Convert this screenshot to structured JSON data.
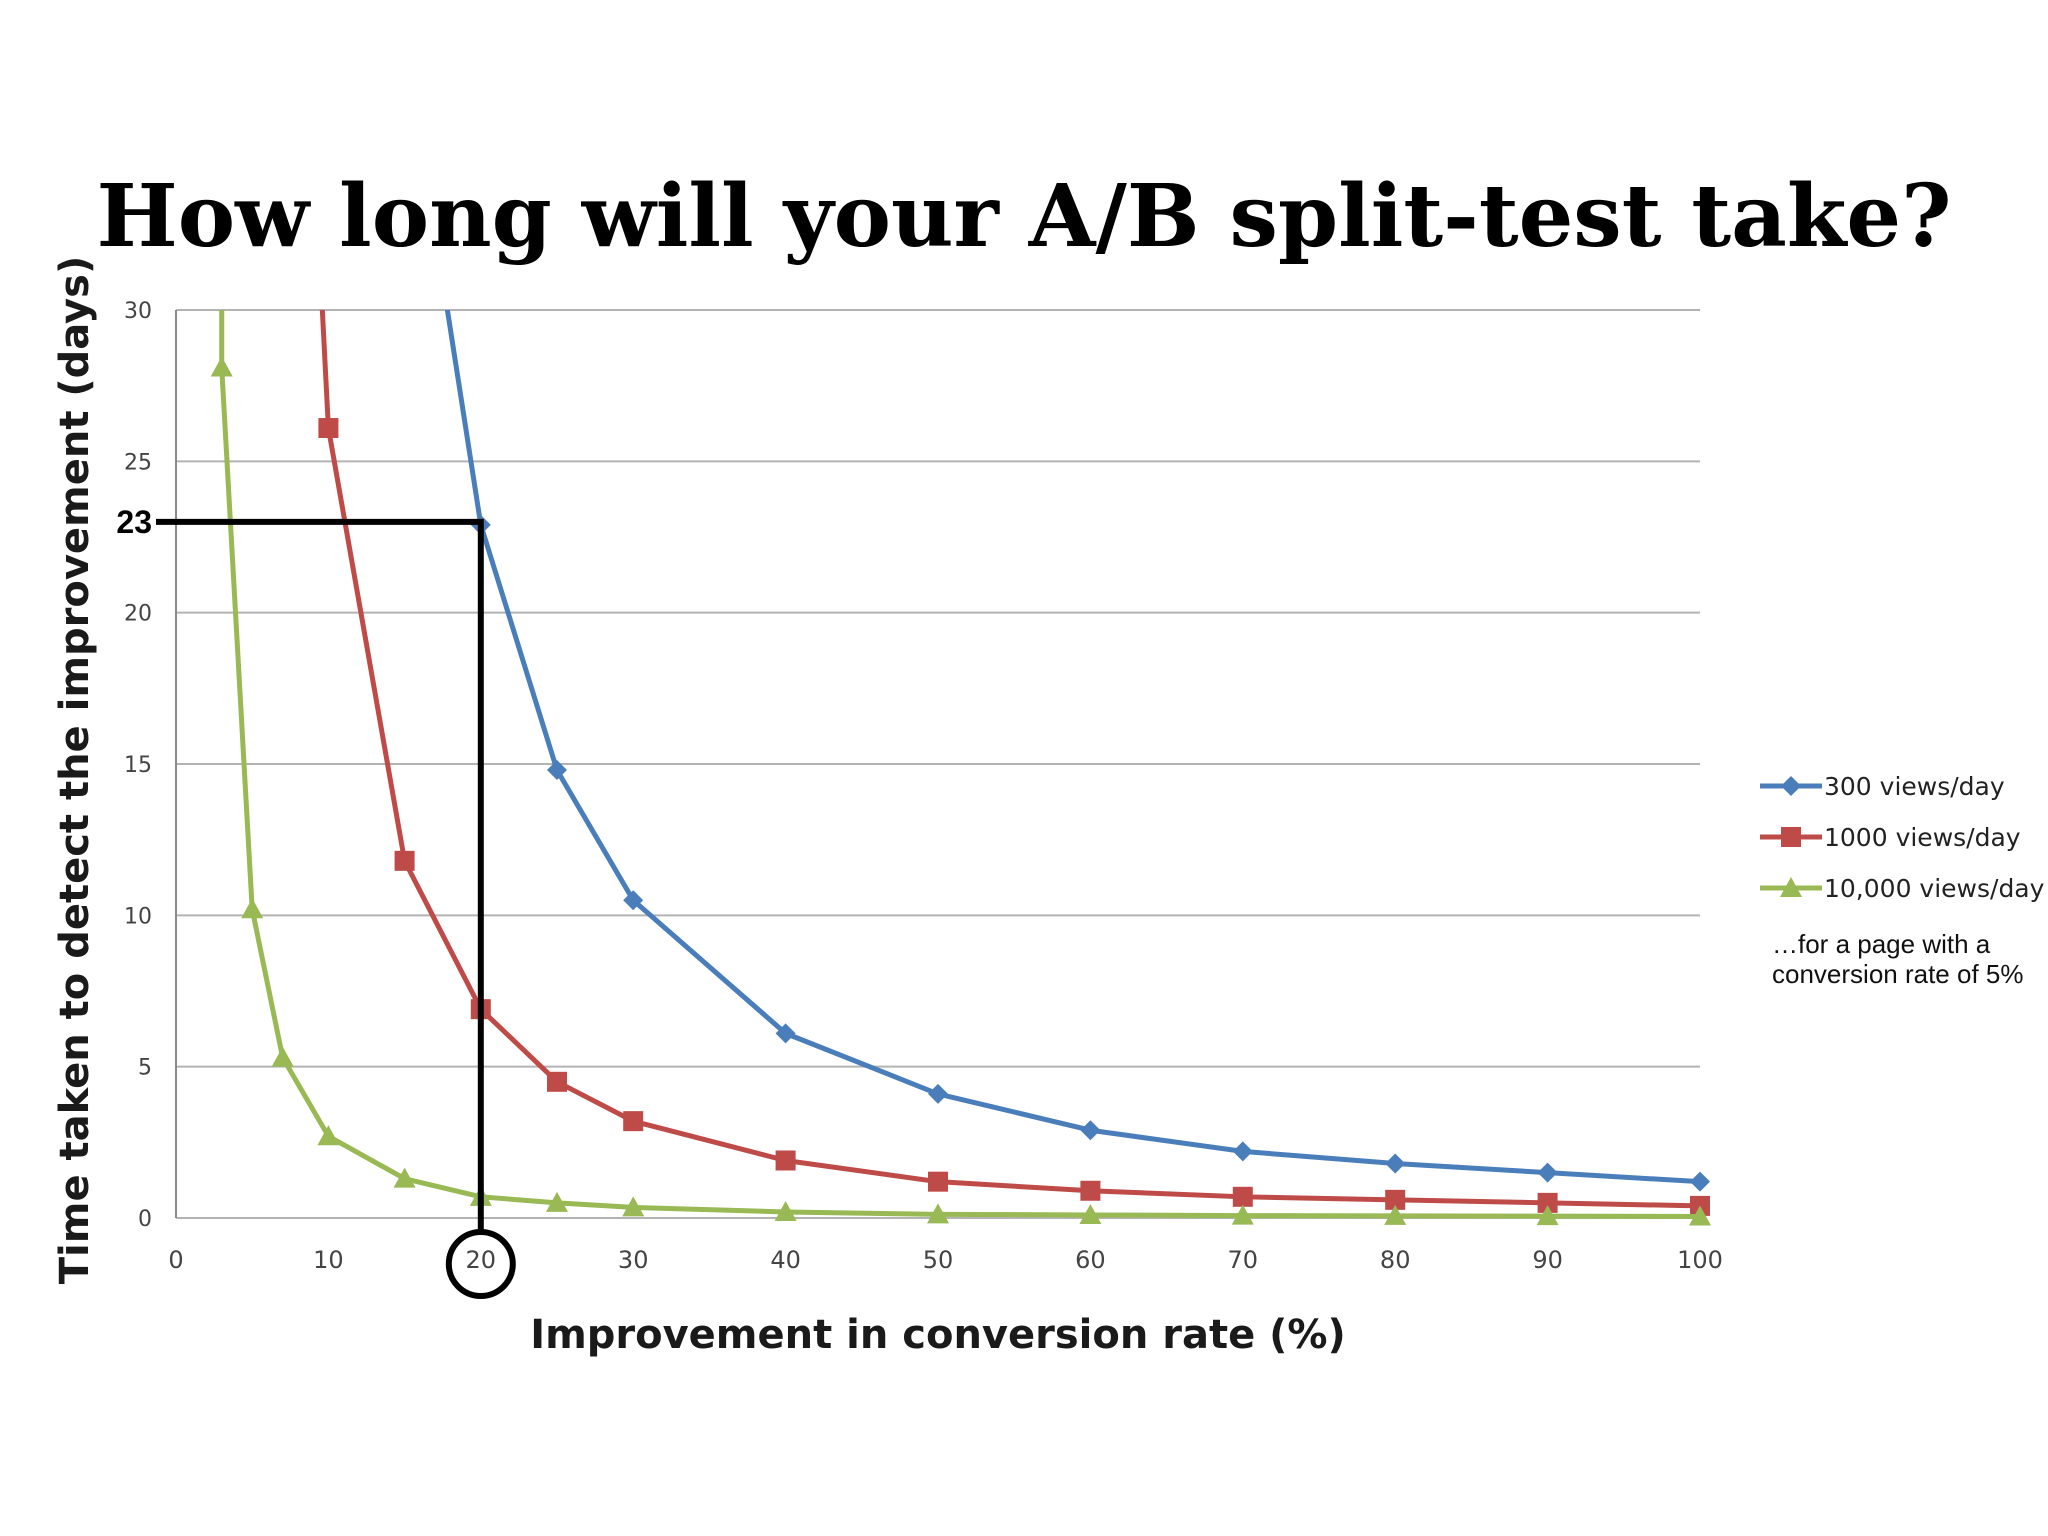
{
  "chart_data": {
    "type": "line",
    "title": "How long will your A/B split-test take?",
    "xlabel": "Improvement in conversion rate (%)",
    "ylabel": "Time taken to detect the improvement (days)",
    "xlim": [
      0,
      100
    ],
    "ylim": [
      0,
      30
    ],
    "x_ticks": [
      0,
      10,
      20,
      30,
      40,
      50,
      60,
      70,
      80,
      90,
      100
    ],
    "y_ticks": [
      0,
      5,
      10,
      15,
      20,
      25,
      30
    ],
    "grid": "horizontal",
    "legend_position": "right",
    "series": [
      {
        "name": "300 views/day",
        "color": "#4a7ebb",
        "marker": "diamond",
        "points": [
          [
            17.5,
            31
          ],
          [
            20,
            22.9
          ],
          [
            25,
            14.8
          ],
          [
            30,
            10.5
          ],
          [
            40,
            6.1
          ],
          [
            50,
            4.1
          ],
          [
            60,
            2.9
          ],
          [
            70,
            2.2
          ],
          [
            80,
            1.8
          ],
          [
            90,
            1.5
          ],
          [
            100,
            1.2
          ]
        ]
      },
      {
        "name": "1000 views/day",
        "color": "#be4b48",
        "marker": "square",
        "points": [
          [
            9.5,
            31
          ],
          [
            10,
            26.1
          ],
          [
            15,
            11.8
          ],
          [
            20,
            6.9
          ],
          [
            25,
            4.5
          ],
          [
            30,
            3.2
          ],
          [
            40,
            1.9
          ],
          [
            50,
            1.2
          ],
          [
            60,
            0.9
          ],
          [
            70,
            0.7
          ],
          [
            80,
            0.6
          ],
          [
            90,
            0.5
          ],
          [
            100,
            0.4
          ]
        ]
      },
      {
        "name": "10,000 views/day",
        "color": "#98b954",
        "marker": "triangle",
        "points": [
          [
            3,
            31
          ],
          [
            3,
            28.1
          ],
          [
            5,
            10.2
          ],
          [
            7,
            5.3
          ],
          [
            10,
            2.7
          ],
          [
            15,
            1.3
          ],
          [
            20,
            0.7
          ],
          [
            25,
            0.5
          ],
          [
            30,
            0.35
          ],
          [
            40,
            0.2
          ],
          [
            50,
            0.12
          ],
          [
            60,
            0.1
          ],
          [
            70,
            0.08
          ],
          [
            80,
            0.07
          ],
          [
            90,
            0.06
          ],
          [
            100,
            0.05
          ]
        ]
      }
    ],
    "annotation": {
      "x": 20,
      "y": 23,
      "y_label": "23",
      "x_label": "20"
    },
    "note": "…for a page with a conversion rate of 5%",
    "colors": {
      "grid": "#b3b3b3",
      "axis": "#8a8a8a",
      "tick_text": "#444444",
      "annotation": "#000000"
    }
  }
}
